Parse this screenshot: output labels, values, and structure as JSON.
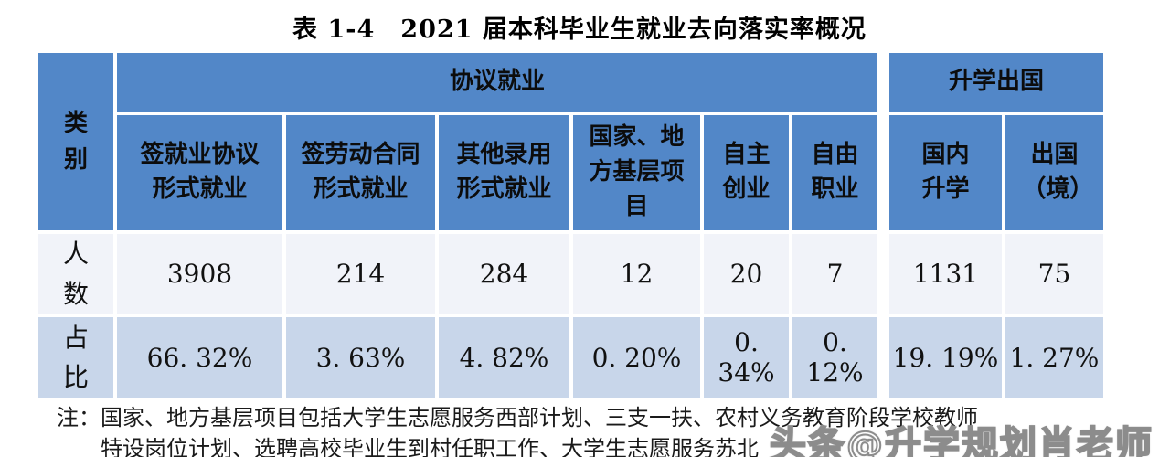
{
  "title": "表 1-4　2021 届本科毕业生就业去向落实率概况",
  "table": {
    "corner": "类别",
    "groups": [
      {
        "label": "协议就业",
        "span": 6
      },
      {
        "label": "升学出国",
        "span": 2
      }
    ],
    "columns": [
      "签就业协议形式就业",
      "签劳动合同形式就业",
      "其他录用形式就业",
      "国家、地方基层项目",
      "自主创业",
      "自由职业",
      "国内升学",
      "出国（境）"
    ],
    "rows": [
      {
        "label": "人数",
        "values": [
          "3908",
          "214",
          "284",
          "12",
          "20",
          "7",
          "1131",
          "75"
        ]
      },
      {
        "label": "占比",
        "values": [
          "66. 32%",
          "3. 63%",
          "4. 82%",
          "0. 20%",
          "0. 34%",
          "0. 12%",
          "19. 19%",
          "1. 27%"
        ]
      }
    ]
  },
  "note": {
    "prefix": "注：",
    "line1": "国家、地方基层项目包括大学生志愿服务西部计划、三支一扶、农村义务教育阶段学校教师",
    "line2": "特设岗位计划、选聘高校毕业生到村任职工作、大学生志愿服务苏北"
  },
  "watermark": {
    "text": "头条@升学规划肖老师"
  },
  "colors": {
    "header_blue": "#5287c8",
    "count_row_bg": "#f1f3f9",
    "percent_row_bg": "#c8d6ea",
    "watermark_gray": "#8c8c8c"
  }
}
